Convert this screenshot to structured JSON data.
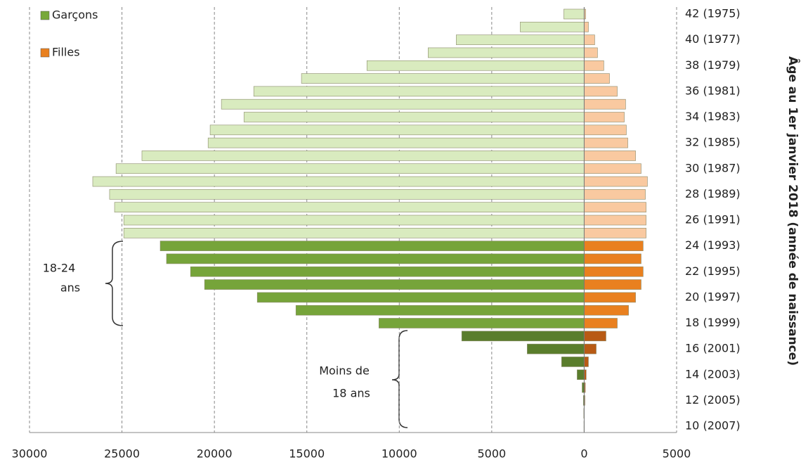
{
  "chart_data": {
    "type": "pyramid",
    "y_axis_title": "Âge au 1er janvier 2018 (année de naissance)",
    "categories": [
      "42 (1975)",
      null,
      "40 (1977)",
      null,
      "38 (1979)",
      null,
      "36 (1981)",
      null,
      "34 (1983)",
      null,
      "32 (1985)",
      null,
      "30 (1987)",
      null,
      "28 (1989)",
      null,
      "26 (1991)",
      null,
      "24 (1993)",
      null,
      "22 (1995)",
      null,
      "20 (1997)",
      null,
      "18 (1999)",
      null,
      "16 (2001)",
      null,
      "14 (2003)",
      null,
      "12 (2005)",
      null,
      "10 (2007)"
    ],
    "series": [
      {
        "name": "Garçons",
        "color": "#77a83a",
        "values": [
          -1100,
          -3460,
          -6920,
          -8440,
          -11750,
          -15290,
          -17870,
          -19620,
          -18400,
          -20230,
          -20340,
          -23920,
          -25320,
          -26580,
          -25670,
          -25400,
          -24900,
          -24900,
          -22930,
          -22590,
          -21290,
          -20530,
          -17680,
          -15590,
          -11100,
          -6620,
          -3080,
          -1220,
          -380,
          -110,
          -40,
          -20,
          -10
        ],
        "colors": [
          "#d9ebbf",
          "#d9ebbf",
          "#d9ebbf",
          "#d9ebbf",
          "#d9ebbf",
          "#d9ebbf",
          "#d9ebbf",
          "#d9ebbf",
          "#d9ebbf",
          "#d9ebbf",
          "#d9ebbf",
          "#d9ebbf",
          "#d9ebbf",
          "#d9ebbf",
          "#d9ebbf",
          "#d9ebbf",
          "#d9ebbf",
          "#d9ebbf",
          "#76a43a",
          "#76a43a",
          "#76a43a",
          "#76a43a",
          "#76a43a",
          "#76a43a",
          "#76a43a",
          "#5a7d2c",
          "#5a7d2c",
          "#5a7d2c",
          "#5a7d2c",
          "#5a7d2c",
          "#5a7d2c",
          "#5a7d2c",
          "#5a7d2c"
        ]
      },
      {
        "name": "Filles",
        "color": "#e9801f",
        "values": [
          80,
          230,
          570,
          720,
          1060,
          1370,
          1790,
          2240,
          2170,
          2280,
          2360,
          2780,
          3080,
          3420,
          3310,
          3350,
          3350,
          3350,
          3190,
          3080,
          3190,
          3080,
          2780,
          2400,
          1790,
          1180,
          650,
          230,
          110,
          60,
          40,
          10,
          10
        ],
        "colors": [
          "#f9c9a0",
          "#f9c9a0",
          "#f9c9a0",
          "#f9c9a0",
          "#f9c9a0",
          "#f9c9a0",
          "#f9c9a0",
          "#f9c9a0",
          "#f9c9a0",
          "#f9c9a0",
          "#f9c9a0",
          "#f9c9a0",
          "#f9c9a0",
          "#f9c9a0",
          "#f9c9a0",
          "#f9c9a0",
          "#f9c9a0",
          "#f9c9a0",
          "#e9801f",
          "#e9801f",
          "#e9801f",
          "#e9801f",
          "#e9801f",
          "#e9801f",
          "#e9801f",
          "#b85a14",
          "#b85a14",
          "#b85a14",
          "#b85a14",
          "#b85a14",
          "#b85a14",
          "#b85a14",
          "#b85a14"
        ]
      }
    ],
    "xlim": [
      -30000,
      5000
    ],
    "xticks": [
      {
        "value": -30000,
        "label": "30000"
      },
      {
        "value": -25000,
        "label": "25000"
      },
      {
        "value": -20000,
        "label": "20000"
      },
      {
        "value": -15000,
        "label": "15000"
      },
      {
        "value": -10000,
        "label": "10000"
      },
      {
        "value": -5000,
        "label": "5000"
      },
      0,
      5000
    ],
    "grid": true,
    "legend": "upper left",
    "annotations": [
      "18-24",
      "ans",
      "Moins de",
      "18 ans"
    ]
  }
}
